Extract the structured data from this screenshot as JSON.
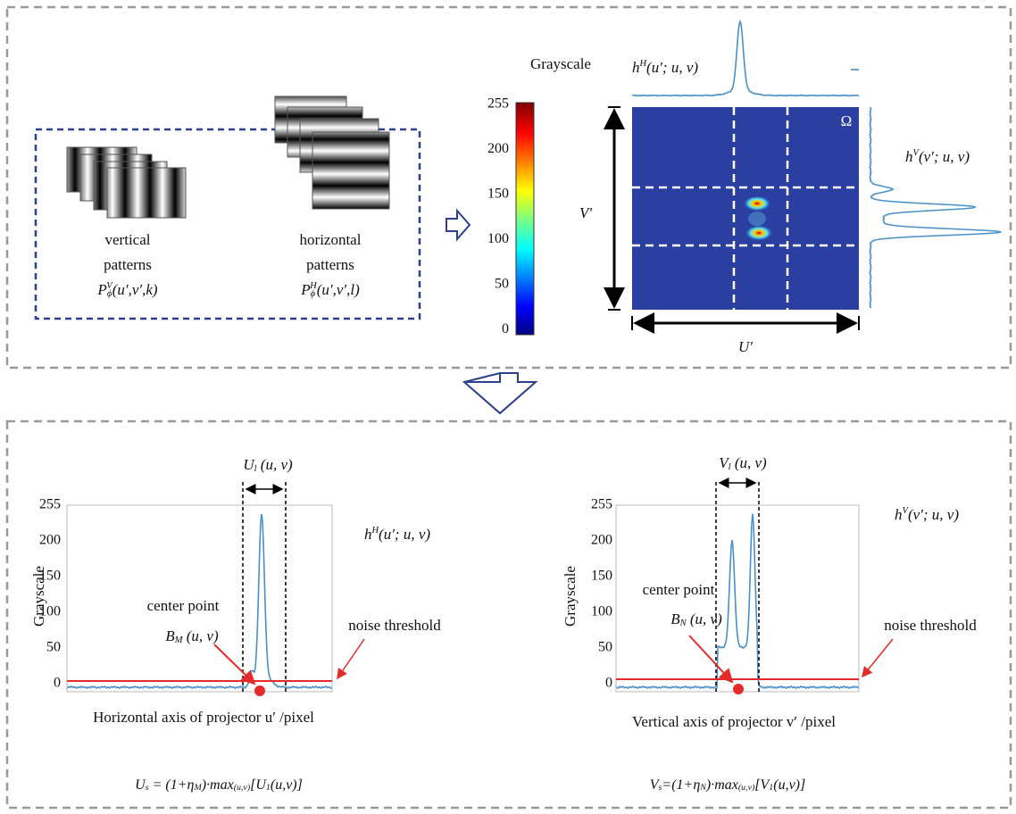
{
  "top_panel": {
    "vertical_patterns": {
      "label": [
        "vertical",
        "patterns"
      ],
      "formula": [
        {
          "t": "P"
        },
        {
          "sub": "ϕ"
        },
        {
          "sup": "V"
        },
        {
          "t": "(u′,v′,k)"
        }
      ]
    },
    "horizontal_patterns": {
      "label": [
        "horizontal",
        "patterns"
      ],
      "formula": [
        {
          "t": "P"
        },
        {
          "sub": "ϕ"
        },
        {
          "sup": "H"
        },
        {
          "t": "(u′,v′,l)"
        }
      ]
    },
    "colorbar": {
      "title": "Grayscale",
      "ticks": [
        "255",
        "200",
        "150",
        "100",
        "50",
        "0"
      ]
    },
    "image": {
      "region_label": "Ω",
      "row_axis": "V'",
      "col_axis": "U'"
    },
    "column_profile": [
      {
        "t": "h"
      },
      {
        "sup": "H"
      },
      {
        "t": "(u′; u, v)"
      }
    ],
    "row_profile": [
      {
        "t": "h"
      },
      {
        "sup": "V"
      },
      {
        "t": "(v′; u, v)"
      }
    ]
  },
  "bottom_panel": {
    "left_plot": {
      "y_label": "Grayscale",
      "y_ticks": [
        "255",
        "200",
        "150",
        "100",
        "50",
        "0"
      ],
      "width_label": [
        {
          "t": "U"
        },
        {
          "sub": "l"
        },
        {
          "t": " (u, v)"
        }
      ],
      "profile_label": [
        {
          "t": "h"
        },
        {
          "sup": "H"
        },
        {
          "t": "(u′; u, v)"
        }
      ],
      "center_point": "center point",
      "center_label": [
        {
          "t": "B"
        },
        {
          "sub": "M"
        },
        {
          "t": " (u, v)"
        }
      ],
      "threshold_label": "noise threshold",
      "x_label": "Horizontal axis of projector u′ /pixel",
      "formula": [
        {
          "t": "U"
        },
        {
          "sub": "s"
        },
        {
          "t": " = (1+η"
        },
        {
          "sub": "M"
        },
        {
          "t": ")·max"
        },
        {
          "sub": "(u,v)"
        },
        {
          "t": "[U"
        },
        {
          "sub": "1"
        },
        {
          "t": "(u,v)]"
        }
      ]
    },
    "right_plot": {
      "y_label": "Grayscale",
      "y_ticks": [
        "255",
        "200",
        "150",
        "100",
        "50",
        "0"
      ],
      "width_label": [
        {
          "t": "V"
        },
        {
          "sub": "l"
        },
        {
          "t": " (u, v)"
        }
      ],
      "profile_label": [
        {
          "t": "h"
        },
        {
          "sup": "V"
        },
        {
          "t": "(v′; u, v)"
        }
      ],
      "center_point": "center point",
      "center_label": [
        {
          "t": "B"
        },
        {
          "sub": "N"
        },
        {
          "t": " (u, v)"
        }
      ],
      "threshold_label": "noise threshold",
      "x_label": "Vertical axis of projector v′ /pixel",
      "formula": [
        {
          "t": "V"
        },
        {
          "sub": "s"
        },
        {
          "t": "=(1+η"
        },
        {
          "sub": "N"
        },
        {
          "t": ")·max"
        },
        {
          "sub": "(u,v)"
        },
        {
          "t": "[V"
        },
        {
          "sub": "1"
        },
        {
          "t": "(u,v)]"
        }
      ]
    }
  }
}
